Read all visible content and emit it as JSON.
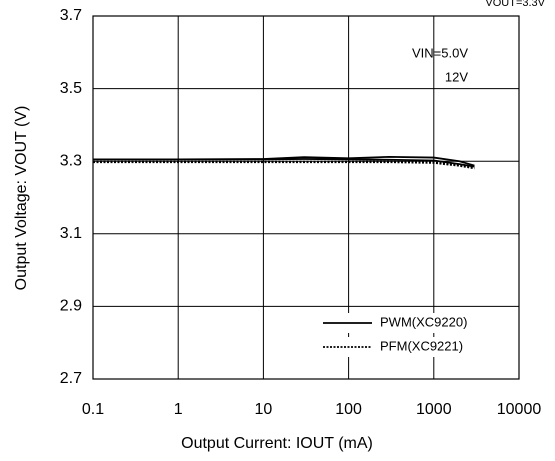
{
  "chart_data": {
    "type": "line",
    "xlabel": "Output Current: IOUT (mA)",
    "ylabel": "Output Voltage: VOUT (V)",
    "annotations": [
      "VOUT=3.3V",
      "VIN=5.0V",
      "12V"
    ],
    "log_x": true,
    "grid": true,
    "xlim": [
      0.1,
      10000
    ],
    "xticks": [
      0.1,
      1,
      10,
      100,
      1000,
      10000
    ],
    "ylim": [
      2.7,
      3.7
    ],
    "yticks": [
      {
        "value": 3.7,
        "label": "3.7"
      },
      {
        "value": 3.5,
        "label": "3.5"
      },
      {
        "value": 3.3,
        "label": "3.3"
      },
      {
        "value": 3.1,
        "label": "3.1"
      },
      {
        "value": 2.9,
        "label": "2.9"
      },
      {
        "value": 2.7,
        "label": "2.7"
      }
    ],
    "x": [
      0.1,
      1,
      10,
      30,
      100,
      300,
      1000,
      2000,
      3000
    ],
    "series": [
      {
        "name": "PWM(XC9220)",
        "color": "#000000",
        "dash": "solid",
        "values": [
          3.305,
          3.305,
          3.305,
          3.306,
          3.305,
          3.304,
          3.302,
          3.292,
          3.285
        ]
      },
      {
        "name": "PFM(XC9221)",
        "color": "#000000",
        "dash": "dotted",
        "values": [
          3.297,
          3.297,
          3.297,
          3.297,
          3.297,
          3.297,
          3.295,
          3.287,
          3.28
        ]
      },
      {
        "color": "#000000",
        "dash": "solid",
        "values": [
          3.305,
          3.305,
          3.306,
          3.311,
          3.308,
          3.312,
          3.31,
          3.3,
          3.288
        ]
      },
      {
        "color": "#000000",
        "dash": "dotted",
        "values": [
          3.299,
          3.299,
          3.299,
          3.299,
          3.299,
          3.299,
          3.297,
          3.29,
          3.283
        ]
      }
    ]
  }
}
